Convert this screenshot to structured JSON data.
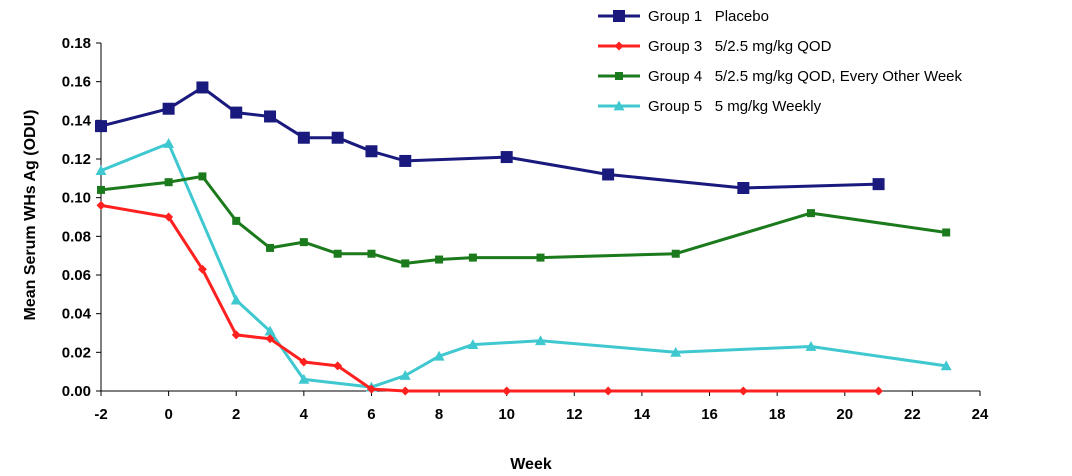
{
  "chart_data": {
    "type": "line",
    "title": "",
    "xlabel": "Week",
    "ylabel": "Mean Serum WHs Ag (ODU)",
    "xlim": [
      -2,
      24
    ],
    "ylim": [
      0,
      0.18
    ],
    "x_ticks": [
      "-2",
      "0",
      "2",
      "4",
      "6",
      "8",
      "10",
      "12",
      "14",
      "16",
      "18",
      "20",
      "22",
      "24"
    ],
    "y_ticks": [
      "0.00",
      "0.02",
      "0.04",
      "0.06",
      "0.08",
      "0.10",
      "0.12",
      "0.14",
      "0.16",
      "0.18"
    ],
    "legend_position": "top-right",
    "grid": false,
    "series": [
      {
        "name": "Group 1   Placebo",
        "color": "#1a1a7e",
        "marker": "square",
        "x": [
          -2,
          0,
          1,
          2,
          3,
          4,
          5,
          6,
          7,
          10,
          13,
          17,
          21
        ],
        "y": [
          0.137,
          0.146,
          0.157,
          0.144,
          0.142,
          0.131,
          0.131,
          0.124,
          0.119,
          0.121,
          0.112,
          0.105,
          0.107
        ]
      },
      {
        "name": "Group 3   5/2.5 mg/kg QOD",
        "color": "#ff2020",
        "marker": "diamond",
        "x": [
          -2,
          0,
          1,
          2,
          3,
          4,
          5,
          6,
          7,
          10,
          13,
          17,
          21
        ],
        "y": [
          0.096,
          0.09,
          0.063,
          0.029,
          0.027,
          0.015,
          0.013,
          0.001,
          0.0,
          0.0,
          0.0,
          0.0,
          0.0
        ]
      },
      {
        "name": "Group 4   5/2.5 mg/kg QOD, Every Other Week",
        "color": "#1b7a1b",
        "marker": "square",
        "x": [
          -2,
          0,
          1,
          2,
          3,
          4,
          5,
          6,
          7,
          8,
          9,
          11,
          15,
          19,
          23
        ],
        "y": [
          0.104,
          0.108,
          0.111,
          0.088,
          0.074,
          0.077,
          0.071,
          0.071,
          0.066,
          0.068,
          0.069,
          0.069,
          0.071,
          0.092,
          0.082
        ]
      },
      {
        "name": "Group 5   5 mg/kg Weekly",
        "color": "#40c8d0",
        "marker": "triangle",
        "x": [
          -2,
          0,
          2,
          3,
          4,
          6,
          7,
          8,
          9,
          11,
          15,
          19,
          23
        ],
        "y": [
          0.114,
          0.128,
          0.047,
          0.031,
          0.006,
          0.002,
          0.008,
          0.018,
          0.024,
          0.026,
          0.02,
          0.023,
          0.013
        ]
      }
    ]
  }
}
